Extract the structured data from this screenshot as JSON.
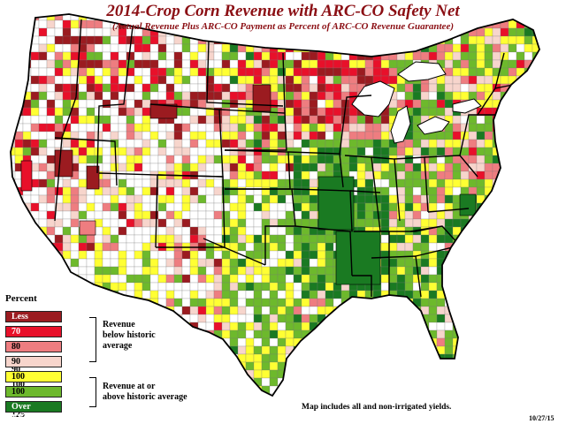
{
  "map": {
    "title": "2014-Crop Corn Revenue with ARC-CO Safety Net",
    "subtitle": "(Actual Revenue Plus ARC-CO Payment as Percent of ARC-CO Revenue Guarantee)",
    "note": "Map includes all and non-irrigated yields.",
    "date": "10/27/15"
  },
  "legend": {
    "title": "Percent",
    "items": [
      {
        "label": "Less than 70",
        "color": "#9b1b20",
        "text_color": "#ffffff"
      },
      {
        "label": "70 - 80",
        "color": "#e8102a",
        "text_color": "#ffffff"
      },
      {
        "label": "80 - 90",
        "color": "#ee7d80",
        "text_color": "#000000"
      },
      {
        "label": "90 - 100",
        "color": "#f7d5cc",
        "text_color": "#000000"
      },
      {
        "label": "100",
        "color": "#ffff33",
        "text_color": "#000000"
      },
      {
        "label": "100 - 125",
        "color": "#6db92c",
        "text_color": "#000000"
      },
      {
        "label": "Over 125",
        "color": "#1a7a22",
        "text_color": "#ffffff"
      }
    ],
    "groups": [
      {
        "lines": [
          "Revenue",
          "below historic",
          "average"
        ]
      },
      {
        "lines": [
          "Revenue at or",
          "above historic average"
        ]
      }
    ]
  },
  "colors": {
    "border": "#000000",
    "no_data": "#ffffff"
  }
}
